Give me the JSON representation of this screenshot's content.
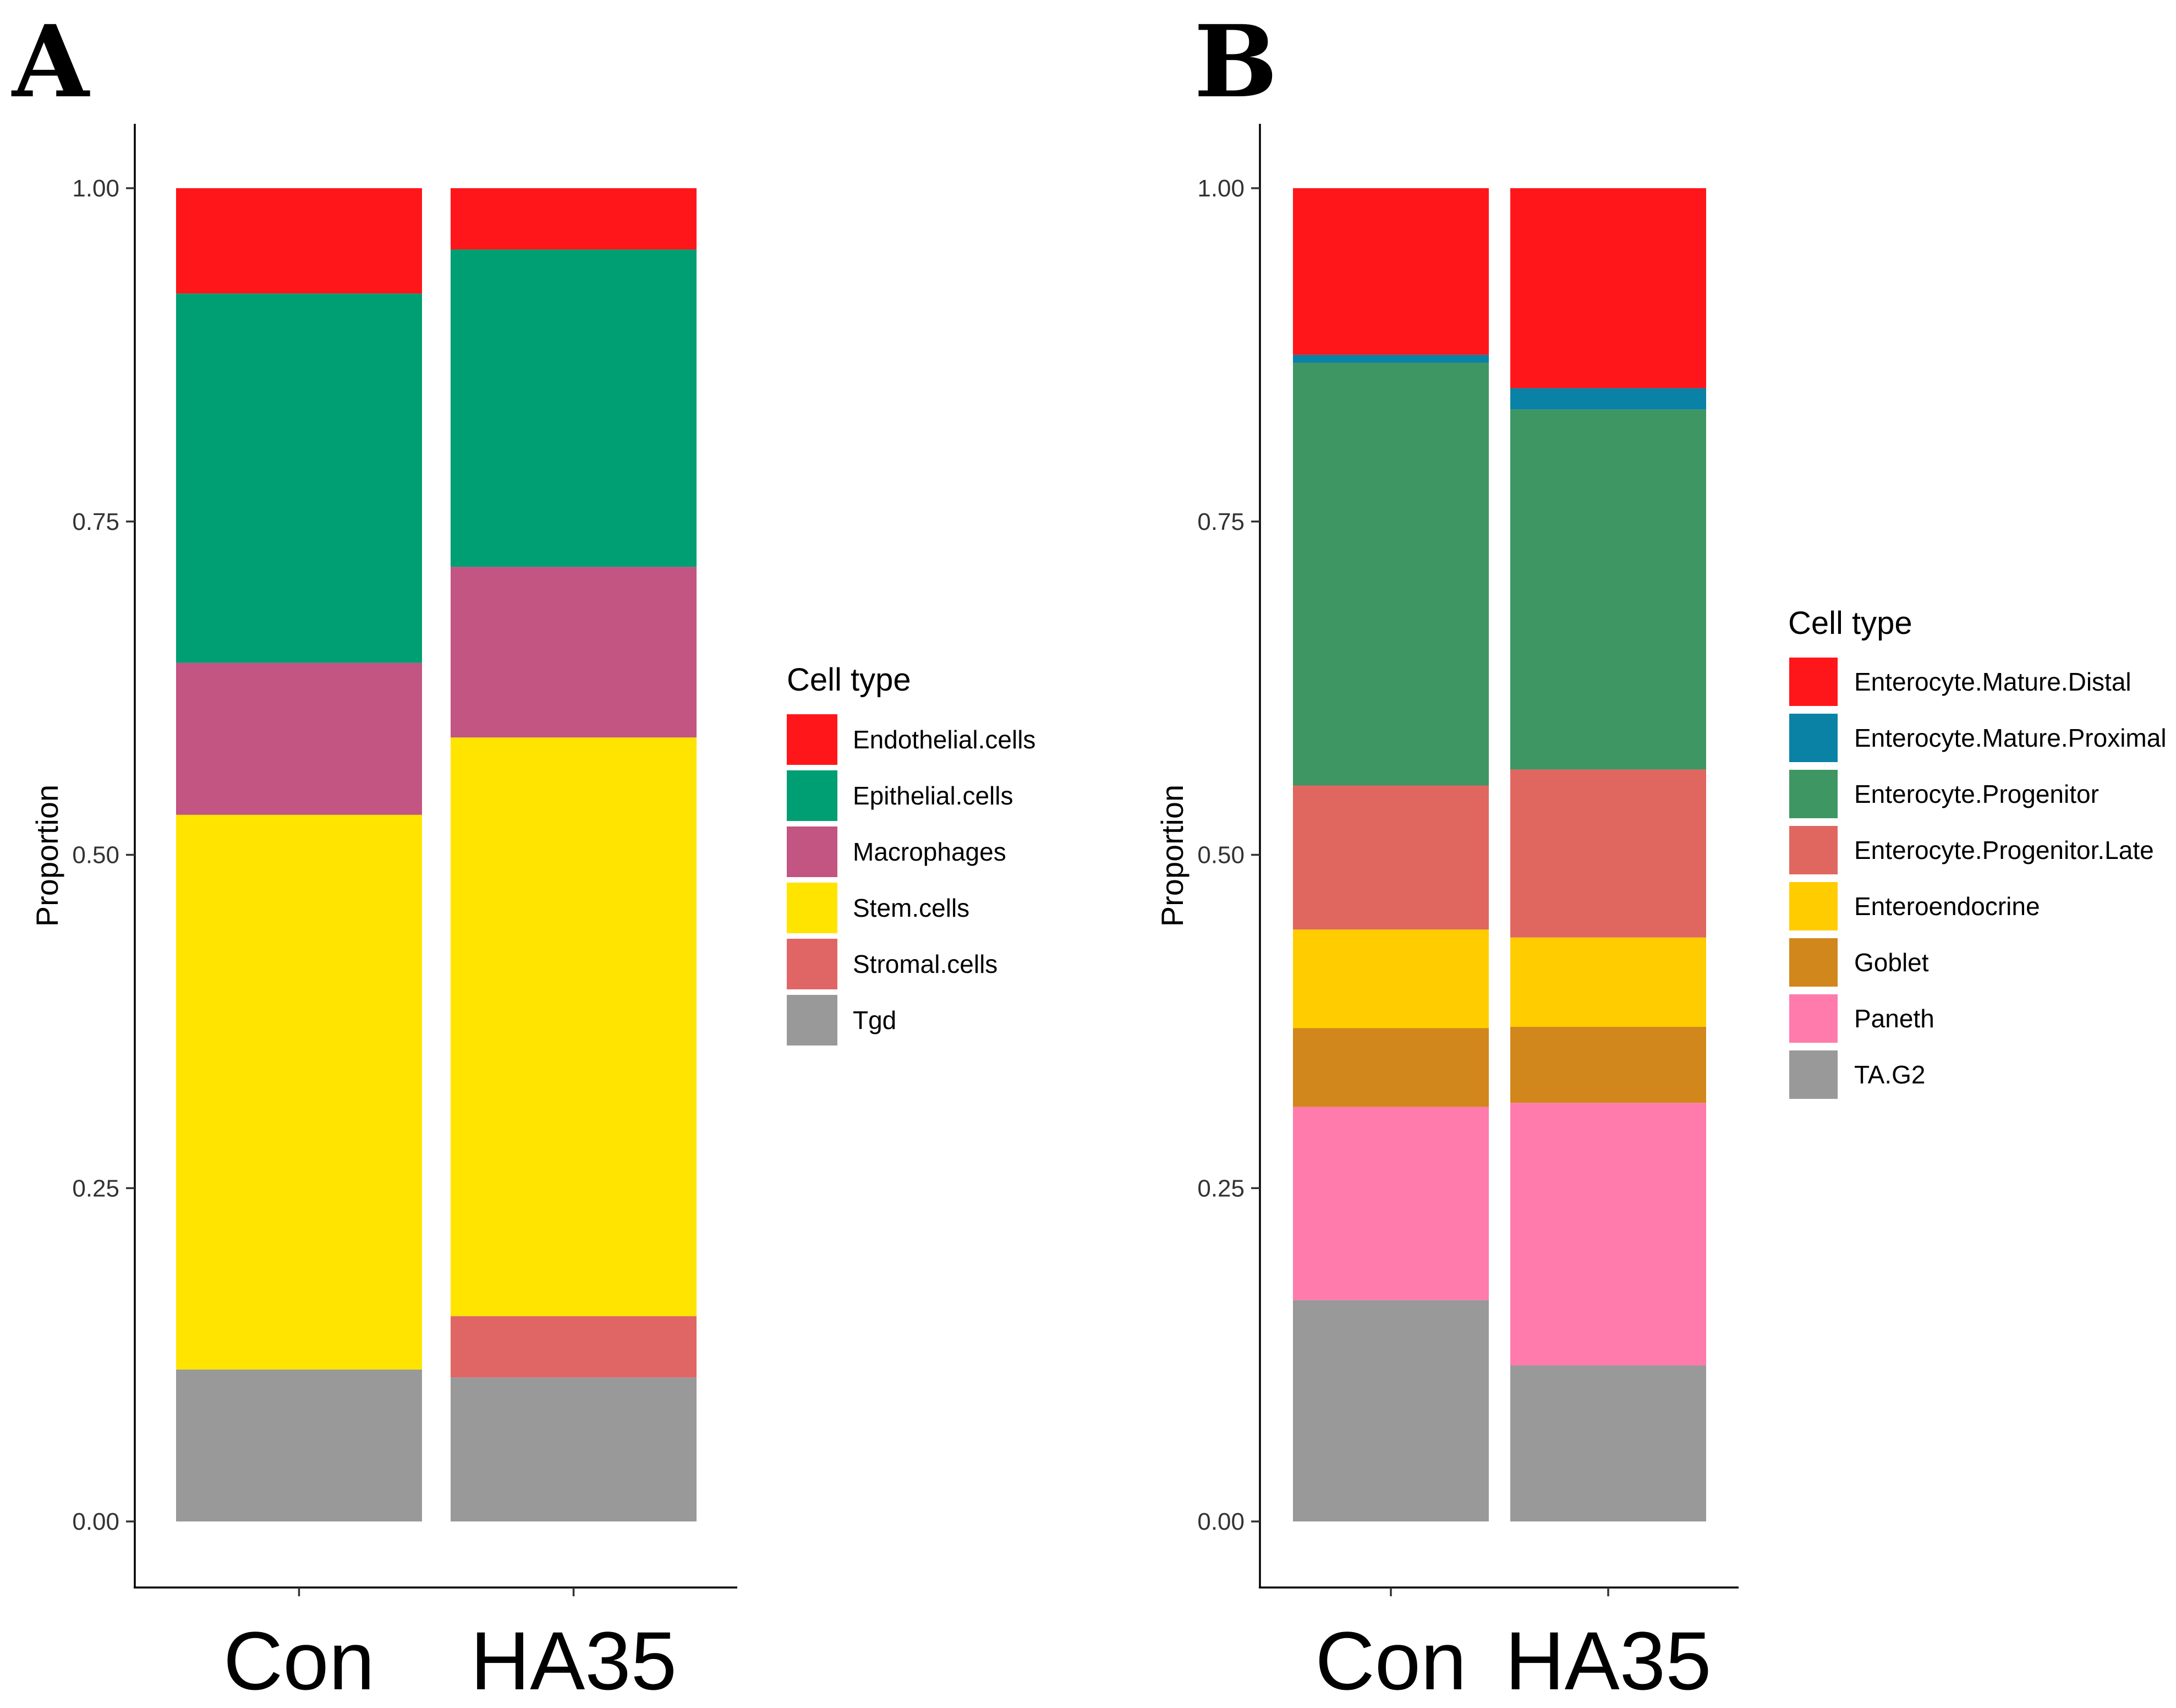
{
  "chart_data": [
    {
      "type": "bar",
      "stacked": true,
      "panel_label": "A",
      "categories": [
        "Con",
        "HA35"
      ],
      "ylabel": "Proportion",
      "xlabel": "",
      "ylim": [
        0,
        1
      ],
      "yticks": [
        "0.00",
        "0.25",
        "0.50",
        "0.75",
        "1.00"
      ],
      "ytick_values": [
        0,
        0.25,
        0.5,
        0.75,
        1.0
      ],
      "legend_title": "Cell type",
      "legend_position": "right",
      "series": [
        {
          "name": "Tgd",
          "color": "#999999",
          "values": [
            0.114,
            0.108
          ]
        },
        {
          "name": "Stromal.cells",
          "color": "#E06666",
          "values": [
            0.0,
            0.046
          ]
        },
        {
          "name": "Stem.cells",
          "color": "#FFE400",
          "values": [
            0.416,
            0.434
          ]
        },
        {
          "name": "Macrophages",
          "color": "#C25582",
          "values": [
            0.114,
            0.128
          ]
        },
        {
          "name": "Epithelial.cells",
          "color": "#009E73",
          "values": [
            0.277,
            0.238
          ]
        },
        {
          "name": "Endothelial.cells",
          "color": "#FF161B",
          "values": [
            0.079,
            0.046
          ]
        }
      ],
      "legend_order": [
        "Endothelial.cells",
        "Epithelial.cells",
        "Macrophages",
        "Stem.cells",
        "Stromal.cells",
        "Tgd"
      ]
    },
    {
      "type": "bar",
      "stacked": true,
      "panel_label": "B",
      "categories": [
        "Con",
        "HA35"
      ],
      "ylabel": "Proportion",
      "xlabel": "",
      "ylim": [
        0,
        1
      ],
      "yticks": [
        "0.00",
        "0.25",
        "0.50",
        "0.75",
        "1.00"
      ],
      "ytick_values": [
        0,
        0.25,
        0.5,
        0.75,
        1.0
      ],
      "legend_title": "Cell type",
      "legend_position": "right",
      "series": [
        {
          "name": "TA.G2",
          "color": "#999999",
          "values": [
            0.166,
            0.117
          ]
        },
        {
          "name": "Paneth",
          "color": "#FF7BAC",
          "values": [
            0.145,
            0.197
          ]
        },
        {
          "name": "Goblet",
          "color": "#D1871C",
          "values": [
            0.059,
            0.057
          ]
        },
        {
          "name": "Enteroendocrine",
          "color": "#FFCC00",
          "values": [
            0.074,
            0.067
          ]
        },
        {
          "name": "Enterocyte.Progenitor.Late",
          "color": "#E06660",
          "values": [
            0.108,
            0.126
          ]
        },
        {
          "name": "Enterocyte.Progenitor",
          "color": "#3E9663",
          "values": [
            0.317,
            0.27
          ]
        },
        {
          "name": "Enterocyte.Mature.Proximal",
          "color": "#0A82A6",
          "values": [
            0.006,
            0.016
          ]
        },
        {
          "name": "Enterocyte.Mature.Distal",
          "color": "#FF161B",
          "values": [
            0.125,
            0.15
          ]
        }
      ],
      "legend_order": [
        "Enterocyte.Mature.Distal",
        "Enterocyte.Mature.Proximal",
        "Enterocyte.Progenitor",
        "Enterocyte.Progenitor.Late",
        "Enteroendocrine",
        "Goblet",
        "Paneth",
        "TA.G2"
      ]
    }
  ]
}
